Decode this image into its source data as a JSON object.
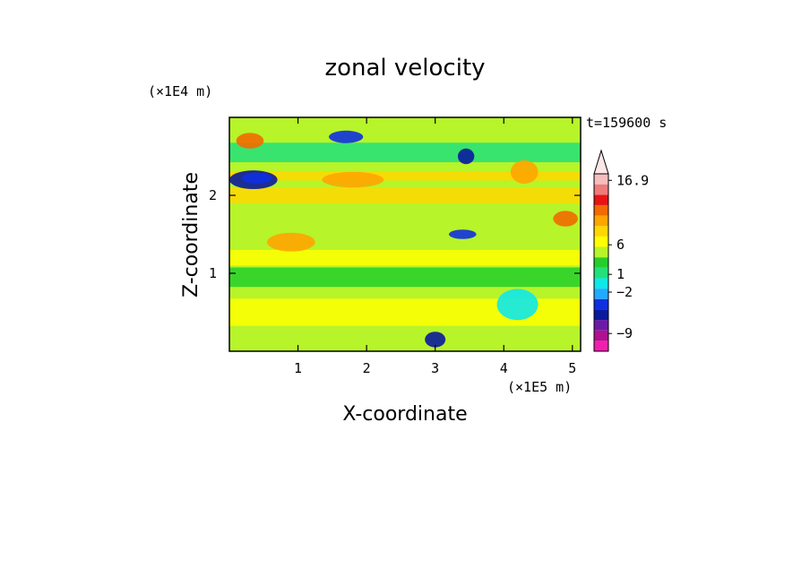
{
  "chart_data": {
    "type": "heatmap",
    "title": "zonal velocity",
    "xlabel": "X-coordinate",
    "ylabel": "Z-coordinate",
    "x_unit": "(×1E5 m)",
    "y_unit": "(×1E4 m)",
    "time_label": "t=159600 s",
    "xlim": [
      0,
      5.12
    ],
    "ylim": [
      0,
      3.0
    ],
    "x_ticks": [
      "1",
      "2",
      "3",
      "4",
      "5"
    ],
    "y_ticks": [
      "1",
      "2"
    ],
    "x_tick_values": [
      1,
      2,
      3,
      4,
      5
    ],
    "y_tick_values": [
      1,
      2
    ],
    "colorbar": {
      "colors": [
        "#f01fae",
        "#b0108f",
        "#6b1aa6",
        "#0a1a9c",
        "#1030e0",
        "#23a9ff",
        "#10e8e8",
        "#22e07a",
        "#24cf2c",
        "#b7f42a",
        "#ffff00",
        "#ffd700",
        "#ffa500",
        "#f26a00",
        "#e81414",
        "#ee7a7a",
        "#f5bdbd"
      ],
      "tick_labels": [
        "16.9",
        "6",
        "1",
        "−2",
        "−9"
      ],
      "tick_levels": [
        16.9,
        6,
        1,
        -2,
        -9
      ]
    }
  }
}
